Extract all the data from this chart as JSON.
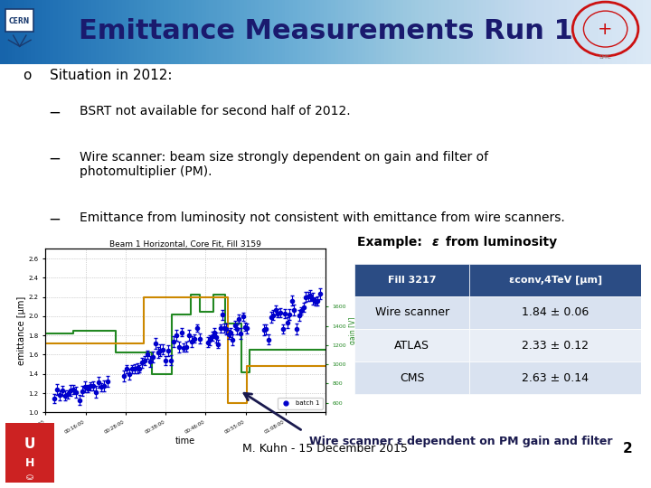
{
  "title": "Emittance Measurements Run 1",
  "title_fontsize": 22,
  "title_color": "#1a1a6e",
  "bg_color": "#ffffff",
  "slide_number": "2",
  "footer_text": "M. Kuhn - 15 December 2015",
  "bullet_main": "Situation in 2012:",
  "bullets": [
    "BSRT not available for second half of 2012.",
    "Wire scanner: beam size strongly dependent on gain and filter of\nphotomultiplier (PM).",
    "Emittance from luminosity not consistent with emittance from wire scanners."
  ],
  "example_title": "Example:  from luminosity",
  "table_header_col1": "Fill 3217",
  "table_header_col2": "εconv,4TeV [μm]",
  "table_rows": [
    [
      "Wire scanner",
      "1.84 ± 0.06"
    ],
    [
      "ATLAS",
      "2.33 ± 0.12"
    ],
    [
      "CMS",
      "2.63 ± 0.14"
    ]
  ],
  "table_header_bg": "#2b4c84",
  "table_header_fg": "#ffffff",
  "table_row_bg1": "#d9e2f0",
  "table_row_bg2": "#e9eef6",
  "arrow_text": "Wire scanner ε dependent on PM gain and filter",
  "plot_caption": "Beam 1 Horizontal, Core Fit, Fill 3159",
  "header_left_color": "#4a6080",
  "header_right_color": "#e0e8f0",
  "uh_box_color": "#cc2222"
}
